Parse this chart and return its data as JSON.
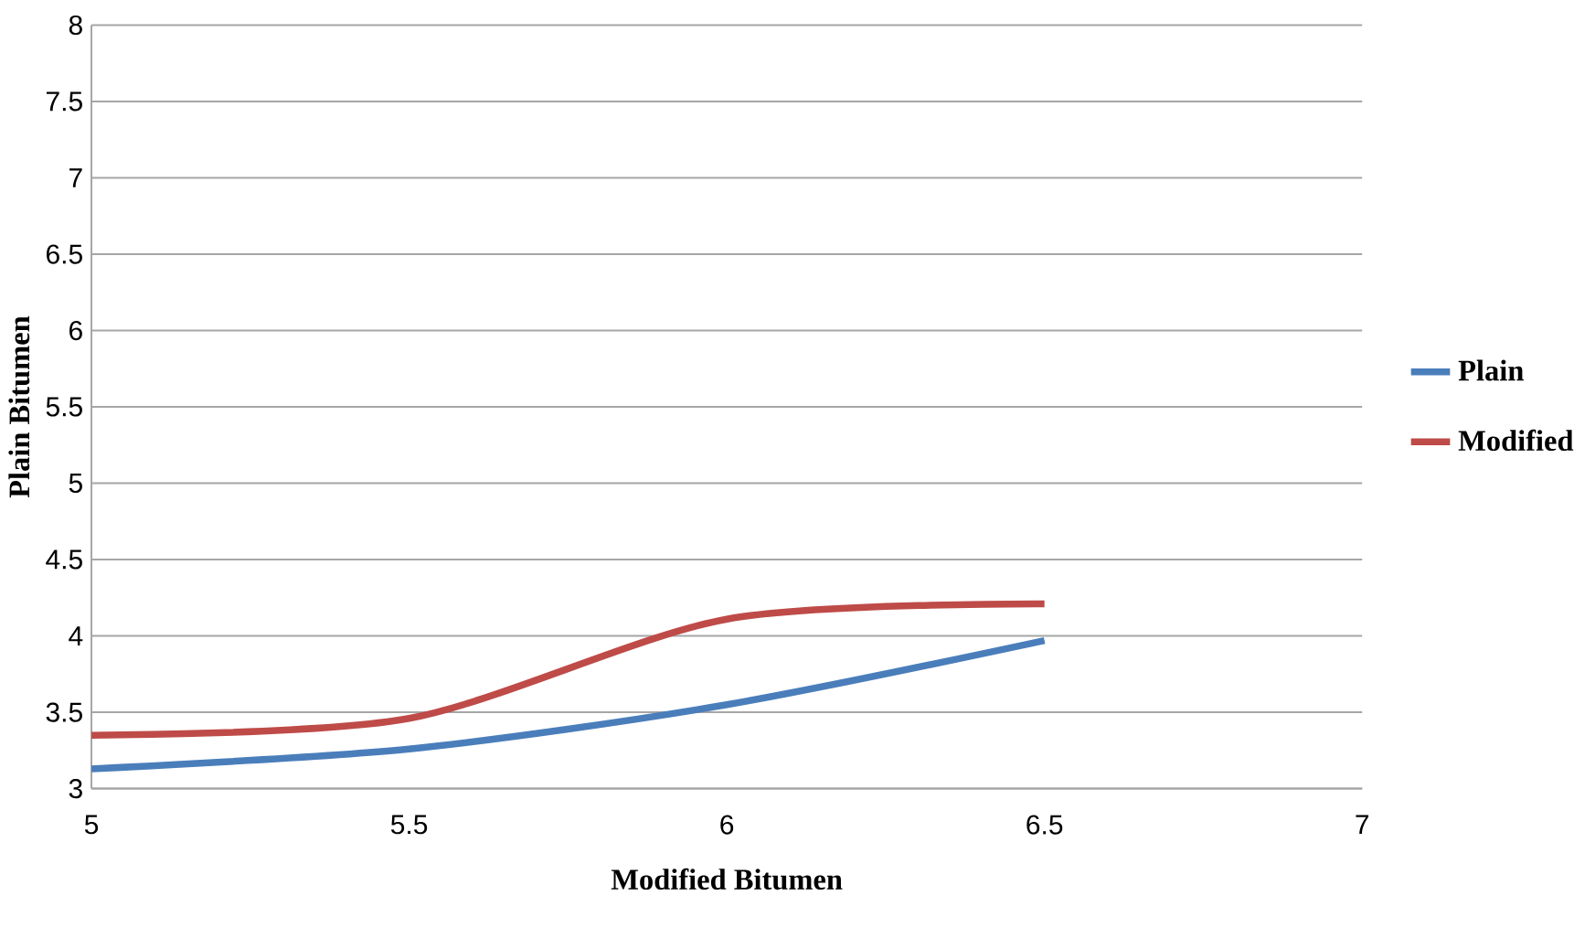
{
  "chart_data": {
    "type": "line",
    "xlabel": "Modified Bitumen",
    "ylabel": "Plain Bitumen",
    "x": [
      5,
      5.5,
      6,
      6.5
    ],
    "series": [
      {
        "name": "Plain",
        "color": "#4a7ebb",
        "values": [
          3.13,
          3.26,
          3.55,
          3.97
        ]
      },
      {
        "name": "Modified",
        "color": "#be4b48",
        "values": [
          3.35,
          3.46,
          4.11,
          4.21
        ]
      }
    ],
    "xlim": [
      5,
      7
    ],
    "xticks": [
      5,
      5.5,
      6,
      6.5,
      7
    ],
    "ylim": [
      3,
      8
    ],
    "yticks": [
      3,
      3.5,
      4,
      4.5,
      5,
      5.5,
      6,
      6.5,
      7,
      7.5,
      8
    ],
    "grid": "y",
    "legend": "right",
    "marker": "none",
    "line_style": "solid"
  }
}
